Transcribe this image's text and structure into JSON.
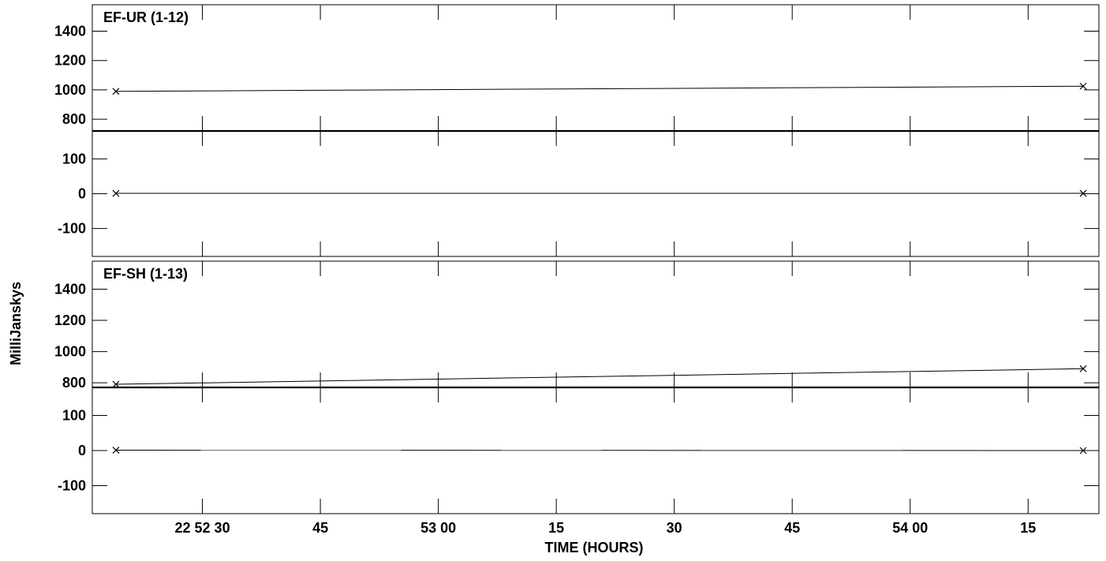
{
  "ylabel": "MilliJanskys",
  "xlabel": "TIME (HOURS)",
  "x_ticks": [
    {
      "label": "22 52 30",
      "value": "22:52:30"
    },
    {
      "label": "45",
      "value": "22:52:45"
    },
    {
      "label": "53 00",
      "value": "22:53:00"
    },
    {
      "label": "15",
      "value": "22:53:15"
    },
    {
      "label": "30",
      "value": "22:53:30"
    },
    {
      "label": "45",
      "value": "22:53:45"
    },
    {
      "label": "54 00",
      "value": "22:54:00"
    },
    {
      "label": "15",
      "value": "22:54:15"
    }
  ],
  "xlim": [
    "22:52:16",
    "22:54:24"
  ],
  "chart_data": [
    {
      "type": "line",
      "title": "EF-UR (1-12)",
      "x": [
        "22:52:19",
        "22:54:22"
      ],
      "series": [
        {
          "values": [
            990,
            1025
          ],
          "ylim": [
            720,
            1580
          ],
          "yticks": [
            800,
            1000,
            1200,
            1400
          ]
        },
        {
          "values": [
            1,
            1
          ],
          "ylim": [
            -180,
            180
          ],
          "yticks": [
            -100,
            0,
            100
          ]
        }
      ]
    },
    {
      "type": "line",
      "title": "EF-SH (1-13)",
      "x": [
        "22:52:19",
        "22:54:22"
      ],
      "series": [
        {
          "values": [
            790,
            890
          ],
          "ylim": [
            770,
            1580
          ],
          "yticks": [
            800,
            1000,
            1200,
            1400
          ]
        },
        {
          "values": [
            1,
            0
          ],
          "ylim": [
            -180,
            180
          ],
          "yticks": [
            -100,
            0,
            100
          ]
        }
      ]
    }
  ]
}
